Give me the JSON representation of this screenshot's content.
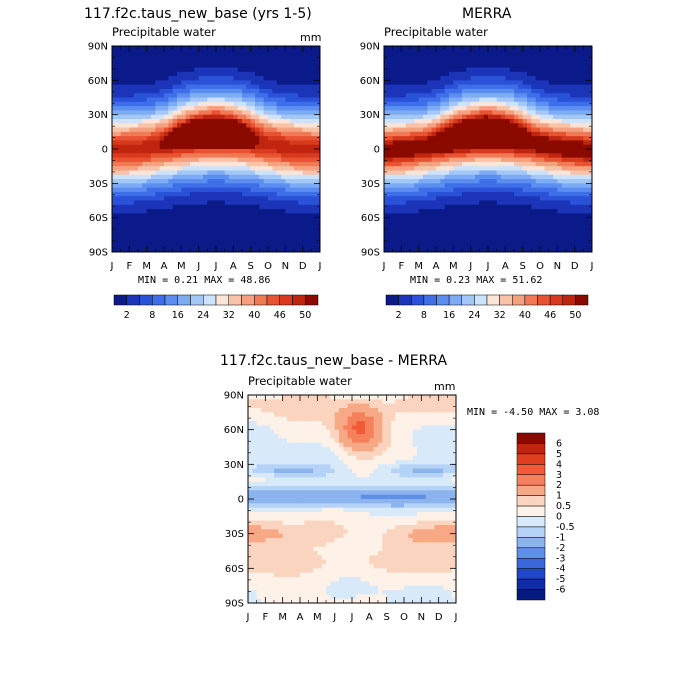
{
  "chart_data": [
    {
      "type": "heatmap",
      "title": "117.f2c.taus_new_base (yrs 1-5)",
      "subtitle": "Precipitable water",
      "units": "mm",
      "x_ticks": [
        "J",
        "F",
        "M",
        "A",
        "M",
        "J",
        "J",
        "A",
        "S",
        "O",
        "N",
        "D",
        "J"
      ],
      "y_ticks": [
        "90N",
        "60N",
        "30N",
        "0",
        "30S",
        "60S",
        "90S"
      ],
      "y_values": [
        90,
        60,
        30,
        0,
        -30,
        -60,
        -90
      ],
      "stats": "MIN =    0.21 MAX =   48.86",
      "min": 0.21,
      "max": 48.86,
      "colorbar": {
        "levels": [
          "2",
          "8",
          "16",
          "24",
          "32",
          "40",
          "46",
          "50"
        ],
        "colors": [
          "#0a1a88",
          "#1b34b8",
          "#2a52d9",
          "#3f6fe8",
          "#5b8ef0",
          "#7eacf4",
          "#a3c8f8",
          "#cde2fb",
          "#fbe4d8",
          "#f9c3a9",
          "#f5a07e",
          "#f07a55",
          "#e85432",
          "#d73a1d",
          "#c02510",
          "#8a0a00"
        ]
      }
    },
    {
      "type": "heatmap",
      "title": "MERRA",
      "subtitle": "Precipitable water",
      "x_ticks": [
        "J",
        "F",
        "M",
        "A",
        "M",
        "J",
        "J",
        "A",
        "S",
        "O",
        "N",
        "D",
        "J"
      ],
      "y_ticks": [
        "90N",
        "60N",
        "30N",
        "0",
        "30S",
        "60S",
        "90S"
      ],
      "y_values": [
        90,
        60,
        30,
        0,
        -30,
        -60,
        -90
      ],
      "stats": "MIN =    0.23 MAX =   51.62",
      "min": 0.23,
      "max": 51.62,
      "colorbar": {
        "levels": [
          "2",
          "8",
          "16",
          "24",
          "32",
          "40",
          "46",
          "50"
        ],
        "colors": [
          "#0a1a88",
          "#1b34b8",
          "#2a52d9",
          "#3f6fe8",
          "#5b8ef0",
          "#7eacf4",
          "#a3c8f8",
          "#cde2fb",
          "#fbe4d8",
          "#f9c3a9",
          "#f5a07e",
          "#f07a55",
          "#e85432",
          "#d73a1d",
          "#c02510",
          "#8a0a00"
        ]
      }
    },
    {
      "type": "heatmap",
      "title": "117.f2c.taus_new_base - MERRA",
      "subtitle": "Precipitable water",
      "units": "mm",
      "x_ticks": [
        "J",
        "F",
        "M",
        "A",
        "M",
        "J",
        "J",
        "A",
        "S",
        "O",
        "N",
        "D",
        "J"
      ],
      "y_ticks": [
        "90N",
        "60N",
        "30N",
        "0",
        "30S",
        "60S",
        "90S"
      ],
      "y_values": [
        90,
        60,
        30,
        0,
        -30,
        -60,
        -90
      ],
      "stats": "MIN =   -4.50 MAX =    3.08",
      "min": -4.5,
      "max": 3.08,
      "colorbar": {
        "levels": [
          "6",
          "5",
          "4",
          "3",
          "2",
          "1",
          "0.5",
          "0",
          "-0.5",
          "-1",
          "-2",
          "-3",
          "-4",
          "-5",
          "-6"
        ],
        "colors": [
          "#8a0a00",
          "#c0250f",
          "#e04020",
          "#f05c38",
          "#f4805c",
          "#f7a885",
          "#fad4be",
          "#fdf1e8",
          "#d8e9fa",
          "#b5d3f6",
          "#8bb4ef",
          "#5f8fe7",
          "#3a68dc",
          "#2247c6",
          "#0f2ba6",
          "#041a80"
        ]
      }
    }
  ]
}
